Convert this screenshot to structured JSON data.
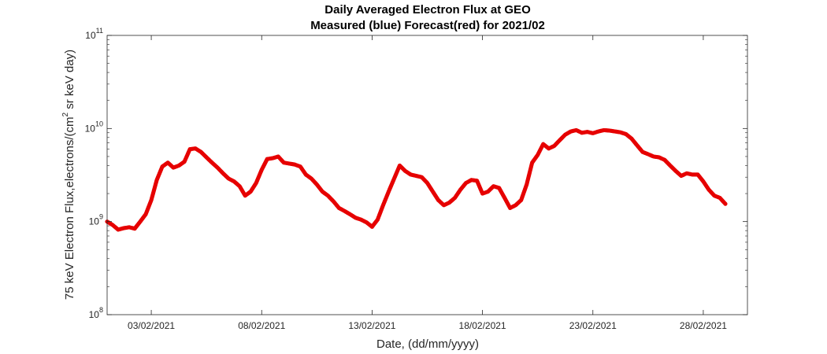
{
  "chart_data": {
    "type": "scatter",
    "title": "Daily Averaged Electron Flux at GEO",
    "subtitle": "Measured (blue) Forecast(red) for 2021/02",
    "xlabel": "Date, (dd/mm/yyyy)",
    "ylabel": "75 keV Electron Flux,electrons/(cm",
    "ylabel_sup": "2",
    "ylabel_tail": " sr keV day)",
    "yscale": "log",
    "xlim": [
      "2021-02-01",
      "2021-03-02"
    ],
    "ylim": [
      100000000.0,
      100000000000.0
    ],
    "xticks": [
      {
        "date": "2021-02-03",
        "label": "03/02/2021"
      },
      {
        "date": "2021-02-08",
        "label": "08/02/2021"
      },
      {
        "date": "2021-02-13",
        "label": "13/02/2021"
      },
      {
        "date": "2021-02-18",
        "label": "18/02/2021"
      },
      {
        "date": "2021-02-23",
        "label": "23/02/2021"
      },
      {
        "date": "2021-02-28",
        "label": "28/02/2021"
      }
    ],
    "yticks": [
      {
        "value": 100000000.0,
        "base": "10",
        "exp": "8"
      },
      {
        "value": 1000000000.0,
        "base": "10",
        "exp": "9"
      },
      {
        "value": 10000000000.0,
        "base": "10",
        "exp": "10"
      },
      {
        "value": 100000000000.0,
        "base": "10",
        "exp": "11"
      }
    ],
    "grid": false,
    "series": [
      {
        "color": "#e60000",
        "marker": "dot",
        "points": [
          [
            "2021-02-01 00:00",
            1000000000.0
          ],
          [
            "2021-02-01 06:00",
            920000000.0
          ],
          [
            "2021-02-01 12:00",
            820000000.0
          ],
          [
            "2021-02-01 18:00",
            850000000.0
          ],
          [
            "2021-02-02 00:00",
            870000000.0
          ],
          [
            "2021-02-02 06:00",
            840000000.0
          ],
          [
            "2021-02-02 12:00",
            1000000000.0
          ],
          [
            "2021-02-02 18:00",
            1200000000.0
          ],
          [
            "2021-02-03 00:00",
            1700000000.0
          ],
          [
            "2021-02-03 06:00",
            2800000000.0
          ],
          [
            "2021-02-03 12:00",
            3900000000.0
          ],
          [
            "2021-02-03 18:00",
            4300000000.0
          ],
          [
            "2021-02-04 00:00",
            3800000000.0
          ],
          [
            "2021-02-04 06:00",
            4000000000.0
          ],
          [
            "2021-02-04 12:00",
            4400000000.0
          ],
          [
            "2021-02-04 18:00",
            6000000000.0
          ],
          [
            "2021-02-05 00:00",
            6100000000.0
          ],
          [
            "2021-02-05 06:00",
            5600000000.0
          ],
          [
            "2021-02-05 12:00",
            4900000000.0
          ],
          [
            "2021-02-05 18:00",
            4300000000.0
          ],
          [
            "2021-02-06 00:00",
            3800000000.0
          ],
          [
            "2021-02-06 06:00",
            3300000000.0
          ],
          [
            "2021-02-06 12:00",
            2900000000.0
          ],
          [
            "2021-02-06 18:00",
            2700000000.0
          ],
          [
            "2021-02-07 00:00",
            2400000000.0
          ],
          [
            "2021-02-07 06:00",
            1900000000.0
          ],
          [
            "2021-02-07 12:00",
            2100000000.0
          ],
          [
            "2021-02-07 18:00",
            2600000000.0
          ],
          [
            "2021-02-08 00:00",
            3600000000.0
          ],
          [
            "2021-02-08 06:00",
            4700000000.0
          ],
          [
            "2021-02-08 12:00",
            4800000000.0
          ],
          [
            "2021-02-08 18:00",
            5000000000.0
          ],
          [
            "2021-02-09 00:00",
            4300000000.0
          ],
          [
            "2021-02-09 06:00",
            4200000000.0
          ],
          [
            "2021-02-09 12:00",
            4100000000.0
          ],
          [
            "2021-02-09 18:00",
            3900000000.0
          ],
          [
            "2021-02-10 00:00",
            3200000000.0
          ],
          [
            "2021-02-10 06:00",
            2900000000.0
          ],
          [
            "2021-02-10 12:00",
            2500000000.0
          ],
          [
            "2021-02-10 18:00",
            2100000000.0
          ],
          [
            "2021-02-11 00:00",
            1900000000.0
          ],
          [
            "2021-02-11 06:00",
            1650000000.0
          ],
          [
            "2021-02-11 12:00",
            1400000000.0
          ],
          [
            "2021-02-11 18:00",
            1300000000.0
          ],
          [
            "2021-02-12 00:00",
            1200000000.0
          ],
          [
            "2021-02-12 06:00",
            1100000000.0
          ],
          [
            "2021-02-12 12:00",
            1050000000.0
          ],
          [
            "2021-02-12 18:00",
            980000000.0
          ],
          [
            "2021-02-13 00:00",
            880000000.0
          ],
          [
            "2021-02-13 06:00",
            1050000000.0
          ],
          [
            "2021-02-13 12:00",
            1500000000.0
          ],
          [
            "2021-02-13 18:00",
            2100000000.0
          ],
          [
            "2021-02-14 00:00",
            2900000000.0
          ],
          [
            "2021-02-14 06:00",
            4000000000.0
          ],
          [
            "2021-02-14 12:00",
            3500000000.0
          ],
          [
            "2021-02-14 18:00",
            3200000000.0
          ],
          [
            "2021-02-15 00:00",
            3100000000.0
          ],
          [
            "2021-02-15 06:00",
            3000000000.0
          ],
          [
            "2021-02-15 12:00",
            2600000000.0
          ],
          [
            "2021-02-15 18:00",
            2100000000.0
          ],
          [
            "2021-02-16 00:00",
            1700000000.0
          ],
          [
            "2021-02-16 06:00",
            1500000000.0
          ],
          [
            "2021-02-16 12:00",
            1600000000.0
          ],
          [
            "2021-02-16 18:00",
            1800000000.0
          ],
          [
            "2021-02-17 00:00",
            2200000000.0
          ],
          [
            "2021-02-17 06:00",
            2600000000.0
          ],
          [
            "2021-02-17 12:00",
            2800000000.0
          ],
          [
            "2021-02-17 18:00",
            2750000000.0
          ],
          [
            "2021-02-18 00:00",
            2000000000.0
          ],
          [
            "2021-02-18 06:00",
            2100000000.0
          ],
          [
            "2021-02-18 12:00",
            2400000000.0
          ],
          [
            "2021-02-18 18:00",
            2300000000.0
          ],
          [
            "2021-02-19 00:00",
            1800000000.0
          ],
          [
            "2021-02-19 06:00",
            1400000000.0
          ],
          [
            "2021-02-19 12:00",
            1500000000.0
          ],
          [
            "2021-02-19 18:00",
            1700000000.0
          ],
          [
            "2021-02-20 00:00",
            2500000000.0
          ],
          [
            "2021-02-20 06:00",
            4300000000.0
          ],
          [
            "2021-02-20 12:00",
            5200000000.0
          ],
          [
            "2021-02-20 18:00",
            6800000000.0
          ],
          [
            "2021-02-21 00:00",
            6100000000.0
          ],
          [
            "2021-02-21 06:00",
            6500000000.0
          ],
          [
            "2021-02-21 12:00",
            7500000000.0
          ],
          [
            "2021-02-21 18:00",
            8600000000.0
          ],
          [
            "2021-02-22 00:00",
            9300000000.0
          ],
          [
            "2021-02-22 06:00",
            9600000000.0
          ],
          [
            "2021-02-22 12:00",
            9000000000.0
          ],
          [
            "2021-02-22 18:00",
            9200000000.0
          ],
          [
            "2021-02-23 00:00",
            8900000000.0
          ],
          [
            "2021-02-23 06:00",
            9300000000.0
          ],
          [
            "2021-02-23 12:00",
            9600000000.0
          ],
          [
            "2021-02-23 18:00",
            9500000000.0
          ],
          [
            "2021-02-24 00:00",
            9300000000.0
          ],
          [
            "2021-02-24 06:00",
            9100000000.0
          ],
          [
            "2021-02-24 12:00",
            8700000000.0
          ],
          [
            "2021-02-24 18:00",
            7800000000.0
          ],
          [
            "2021-02-25 00:00",
            6600000000.0
          ],
          [
            "2021-02-25 06:00",
            5600000000.0
          ],
          [
            "2021-02-25 12:00",
            5300000000.0
          ],
          [
            "2021-02-25 18:00",
            5000000000.0
          ],
          [
            "2021-02-26 00:00",
            4900000000.0
          ],
          [
            "2021-02-26 06:00",
            4600000000.0
          ],
          [
            "2021-02-26 12:00",
            4000000000.0
          ],
          [
            "2021-02-26 18:00",
            3500000000.0
          ],
          [
            "2021-02-27 00:00",
            3100000000.0
          ],
          [
            "2021-02-27 06:00",
            3300000000.0
          ],
          [
            "2021-02-27 12:00",
            3200000000.0
          ],
          [
            "2021-02-27 18:00",
            3200000000.0
          ],
          [
            "2021-02-28 00:00",
            2700000000.0
          ],
          [
            "2021-02-28 06:00",
            2200000000.0
          ],
          [
            "2021-02-28 12:00",
            1900000000.0
          ],
          [
            "2021-02-28 18:00",
            1800000000.0
          ],
          [
            "2021-03-01 00:00",
            1550000000.0
          ]
        ]
      }
    ]
  }
}
